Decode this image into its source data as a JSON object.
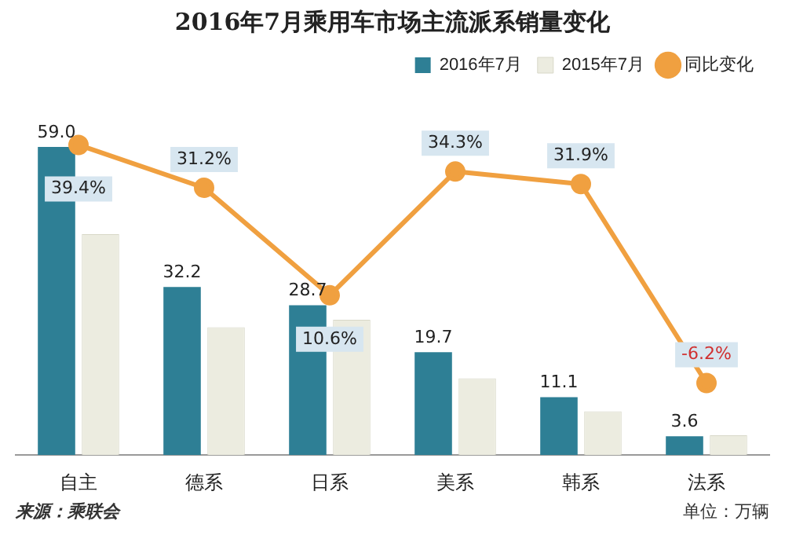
{
  "chart_data": {
    "type": "bar",
    "title": "2016年7月乘用车市场主流派系销量变化",
    "categories": [
      "自主",
      "德系",
      "日系",
      "美系",
      "韩系",
      "法系"
    ],
    "series": [
      {
        "name": "2016年7月",
        "color": "#2e7f95",
        "values": [
          59.0,
          32.2,
          28.7,
          19.7,
          11.1,
          3.6
        ],
        "value_labels": [
          "59.0",
          "32.2",
          "28.7",
          "19.7",
          "11.1",
          "3.6"
        ]
      },
      {
        "name": "2015年7月",
        "color": "#ecece0",
        "values": [
          42.3,
          24.5,
          25.9,
          14.7,
          8.4,
          3.8
        ]
      },
      {
        "name": "同比变化",
        "type": "line",
        "axis": "y2",
        "color": "#f0a040",
        "values": [
          39.4,
          31.2,
          10.6,
          34.3,
          31.9,
          -6.2
        ],
        "value_labels": [
          "39.4%",
          "31.2%",
          "10.6%",
          "34.3%",
          "31.9%",
          "-6.2%"
        ]
      }
    ],
    "tick_labels": "x",
    "grid": false,
    "legend": "top right",
    "marker": "circle",
    "annotations": [
      "来源：乘联会",
      "单位：万辆"
    ]
  }
}
